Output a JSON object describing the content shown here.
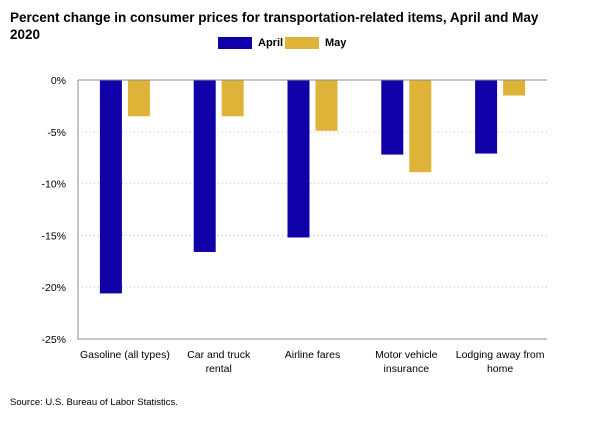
{
  "chart_data": {
    "type": "bar",
    "title": "Percent change in consumer prices for transportation-related items, April and May 2020",
    "xlabel": "",
    "ylabel": "",
    "categories": [
      [
        "Gasoline (all types)"
      ],
      [
        "Car and truck",
        "rental"
      ],
      [
        "Airline fares"
      ],
      [
        "Motor vehicle",
        "insurance"
      ],
      [
        "Lodging away from",
        "home"
      ]
    ],
    "series": [
      {
        "name": "April",
        "color": "#0f00a8",
        "values": [
          -20.6,
          -16.6,
          -15.2,
          -7.2,
          -7.1
        ]
      },
      {
        "name": "May",
        "color": "#dfb238",
        "values": [
          -3.5,
          -3.5,
          -4.9,
          -8.9,
          -1.5
        ]
      }
    ],
    "ylim": [
      -25,
      0
    ],
    "yticks": [
      0,
      -5,
      -10,
      -15,
      -20,
      -25
    ],
    "ytick_labels": [
      "0%",
      "-5%",
      "-10%",
      "-15%",
      "-20%",
      "-25%"
    ],
    "grid": true,
    "legend_position": "top-center"
  },
  "source": "Source: U.S. Bureau of Labor Statistics."
}
